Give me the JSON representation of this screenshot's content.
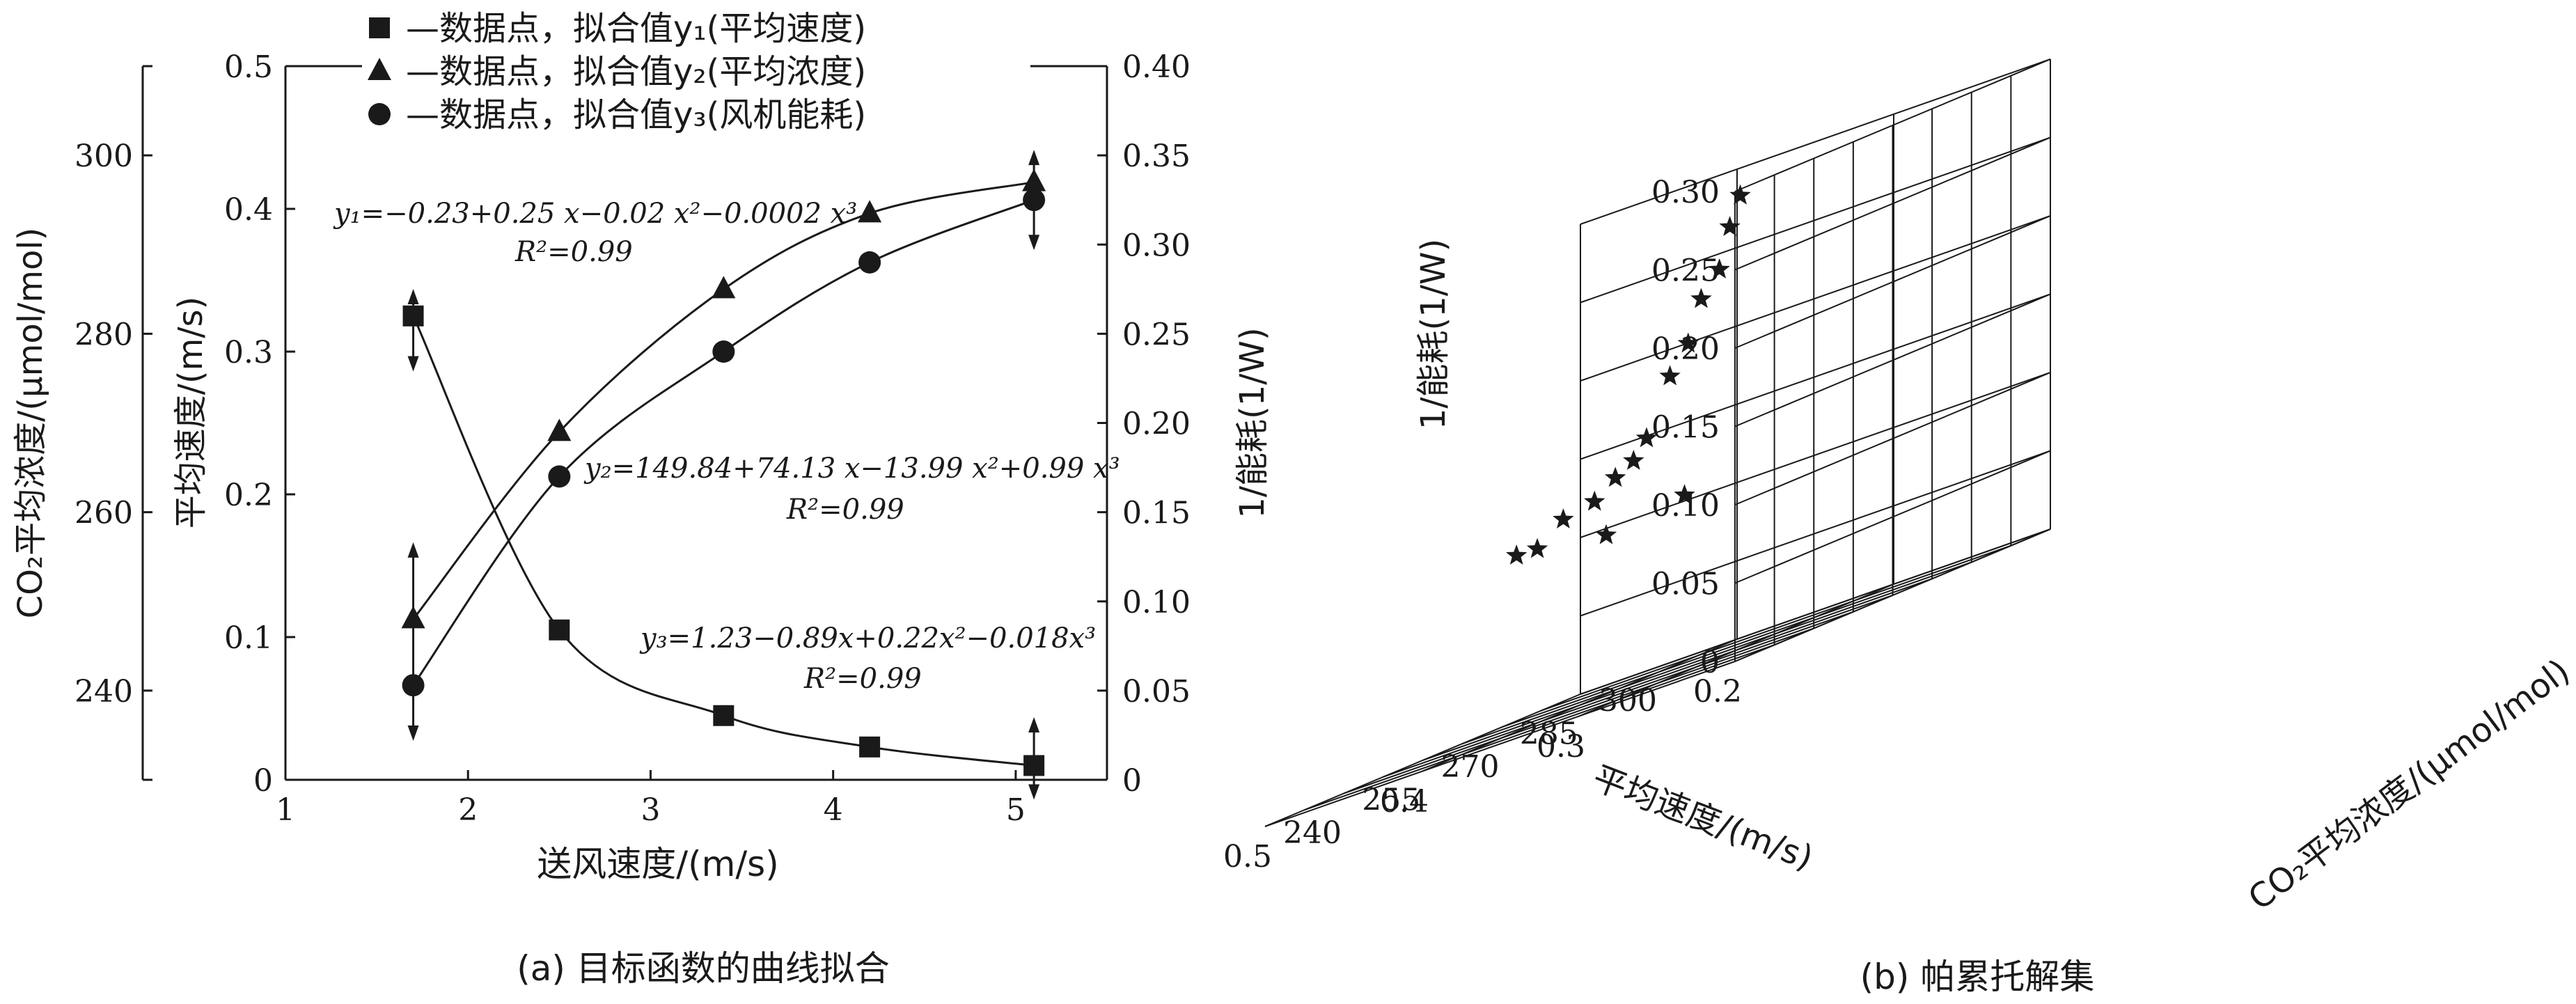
{
  "chart_data": [
    {
      "type": "line",
      "panel_caption": "(a) 目标函数的曲线拟合",
      "xlabel": "送风速度/(m/s)",
      "ylabel_left_outer": "CO₂平均浓度/(μmol/mol)",
      "ylabel_left_inner": "平均速度/(m/s)",
      "ylabel_right": "1/能耗(1/W)",
      "xlim": [
        1,
        5.5
      ],
      "x_ticks": [
        "1",
        "2",
        "3",
        "4",
        "5"
      ],
      "y_left_inner_lim": [
        0,
        0.5
      ],
      "y_left_inner_ticks": [
        "0",
        "0.1",
        "0.2",
        "0.3",
        "0.4",
        "0.5"
      ],
      "y_left_outer_lim": [
        230,
        310
      ],
      "y_left_outer_ticks": [
        "240",
        "260",
        "280",
        "300"
      ],
      "y_right_lim": [
        0,
        0.4
      ],
      "y_right_ticks": [
        "0",
        "0.05",
        "0.10",
        "0.15",
        "0.20",
        "0.25",
        "0.30",
        "0.35",
        "0.40"
      ],
      "legend": [
        {
          "marker": "square",
          "text": "—数据点，拟合值y₁(平均速度)"
        },
        {
          "marker": "triangle",
          "text": "—数据点，拟合值y₂(平均浓度)"
        },
        {
          "marker": "circle",
          "text": "—数据点，拟合值y₃(风机能耗)"
        }
      ],
      "annotations": {
        "eq1": "y₁=−0.23+0.25 x−0.02 x²−0.0002 x³",
        "r1": "R²=0.99",
        "eq2": "y₂=149.84+74.13 x−13.99 x²+0.99 x³",
        "r2": "R²=0.99",
        "eq3": "y₃=1.23−0.89x+0.22x²−0.018x³",
        "r3": "R²=0.99"
      },
      "series": [
        {
          "name": "y1",
          "axis": "left_inner",
          "marker": "square",
          "x": [
            1.7,
            2.5,
            3.4,
            4.2,
            5.1
          ],
          "y": [
            0.325,
            0.105,
            0.045,
            0.023,
            0.01
          ]
        },
        {
          "name": "y2",
          "axis": "left_outer",
          "marker": "triangle",
          "x": [
            1.7,
            2.5,
            3.4,
            4.2,
            5.1
          ],
          "y": [
            248,
            269,
            285,
            293.5,
            297
          ]
        },
        {
          "name": "y3",
          "axis": "right",
          "marker": "circle",
          "x": [
            1.7,
            2.5,
            3.4,
            4.2,
            5.1
          ],
          "y": [
            0.053,
            0.17,
            0.24,
            0.29,
            0.325
          ]
        }
      ]
    },
    {
      "type": "scatter",
      "panel_caption": "(b) 帕累托解集",
      "xlabel": "平均速度/(m/s)",
      "ylabel": "CO₂平均浓度/(μmol/mol)",
      "zlabel": "1/能耗(1/W)",
      "xlim": [
        0.2,
        0.5
      ],
      "x_ticks": [
        "0.2",
        "0.3",
        "0.4",
        "0.5"
      ],
      "ylim": [
        240,
        300
      ],
      "y_ticks": [
        "240",
        "255",
        "270",
        "285",
        "300"
      ],
      "zlim": [
        0,
        0.3
      ],
      "z_ticks": [
        "0",
        "0.05",
        "0.10",
        "0.15",
        "0.20",
        "0.25",
        "0.30"
      ],
      "marker": "star",
      "points": [
        [
          0.2,
          241,
          0.296
        ],
        [
          0.21,
          242,
          0.278
        ],
        [
          0.22,
          243,
          0.253
        ],
        [
          0.235,
          244,
          0.238
        ],
        [
          0.25,
          246,
          0.212
        ],
        [
          0.265,
          247,
          0.195
        ],
        [
          0.29,
          250,
          0.16
        ],
        [
          0.305,
          252,
          0.148
        ],
        [
          0.32,
          253,
          0.141
        ],
        [
          0.34,
          255,
          0.13
        ],
        [
          0.37,
          258,
          0.125
        ],
        [
          0.4,
          262,
          0.111
        ],
        [
          0.42,
          264,
          0.111
        ],
        [
          0.4,
          290,
          0.106
        ],
        [
          0.45,
          290,
          0.098
        ]
      ]
    }
  ]
}
